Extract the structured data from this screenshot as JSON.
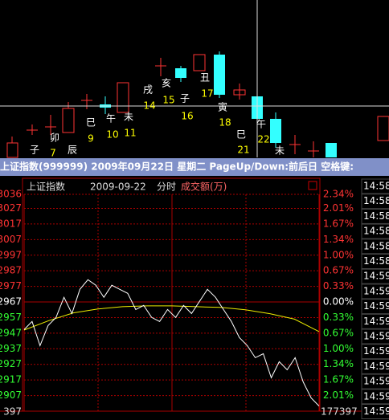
{
  "kline": {
    "zodiac": [
      "子",
      "卯",
      "辰",
      "巳",
      "午",
      "未",
      "戌",
      "亥",
      "子",
      "丑",
      "寅",
      "巳",
      "午",
      "未"
    ],
    "days": [
      7,
      9,
      10,
      11,
      14,
      15,
      16,
      17,
      18,
      21,
      22
    ]
  },
  "title_bar": "上证指数(999999)  2009年09月22日  星期二  PageUp/Down:前后日  空格键:",
  "header": {
    "name": "上证指数",
    "date": "2009-09-22",
    "mode": "分时",
    "volume_label": "成交额(万)"
  },
  "price_axis": {
    "ylim": [
      2897,
      3036
    ],
    "base": 2967,
    "ticks": [
      3036,
      3027,
      3017,
      3007,
      2997,
      2987,
      2977,
      2967,
      2957,
      2947,
      2937,
      2927,
      2917,
      2907
    ]
  },
  "percent_ticks": [
    "2.34%",
    "2.01%",
    "1.67%",
    "1.34%",
    "1.00%",
    "0.67%",
    "0.33%",
    "0.00%",
    "0.33%",
    "0.67%",
    "1.00%",
    "1.34%",
    "1.67%",
    "2.01%"
  ],
  "volume_left": 397,
  "volume_right": 177397,
  "price": [
    2949.3,
    2954.5,
    2939.0,
    2951.9,
    2957.1,
    2970.0,
    2959.6,
    2975.1,
    2981.3,
    2977.7,
    2970.0,
    2977.7,
    2975.1,
    2972.5,
    2962.2,
    2964.8,
    2957.1,
    2954.5,
    2962.2,
    2957.1,
    2964.8,
    2959.6,
    2967.4,
    2975.1,
    2970.0,
    2962.2,
    2954.5,
    2944.2,
    2939.0,
    2931.3,
    2933.8,
    2918.4,
    2928.7,
    2923.5,
    2931.3,
    2915.8,
    2905.5,
    2900.3
  ],
  "average": [
    2949,
    2955,
    2960,
    2962.5,
    2964,
    2964.5,
    2964.5,
    2964,
    2963.5,
    2962,
    2959.5,
    2956,
    2948
  ],
  "times": [
    "14:58",
    "14:58",
    "14:58",
    "14:58",
    "14:58",
    "14:58",
    "14:59",
    "14:59",
    "14:59",
    "14:59",
    "14:59",
    "14:59",
    "14:59",
    "14:59",
    "14:59",
    "14:59"
  ]
}
